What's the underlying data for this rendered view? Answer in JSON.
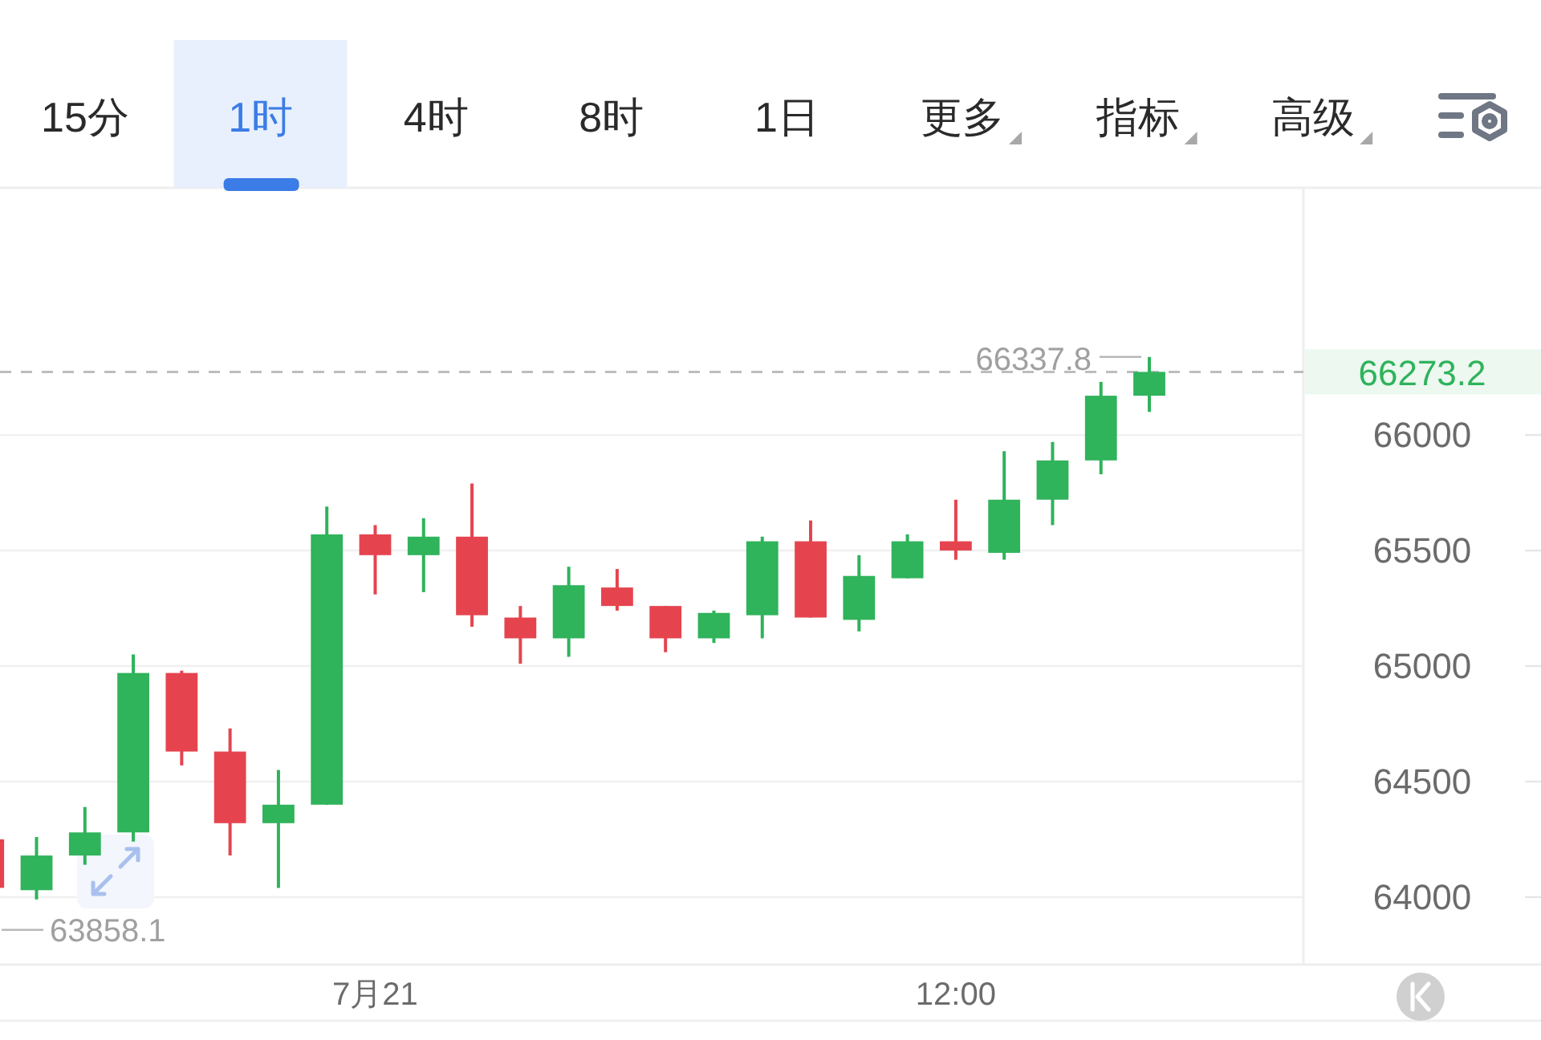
{
  "chart_data": {
    "type": "candlestick",
    "categories": [
      null,
      null,
      null,
      null,
      null,
      null,
      null,
      null,
      "7月21",
      null,
      null,
      null,
      null,
      null,
      null,
      null,
      null,
      null,
      null,
      null,
      "12:00",
      null,
      null,
      null,
      null
    ],
    "ohlc": [
      [
        64250,
        64250,
        64040,
        64040
      ],
      [
        64030,
        64260,
        63990,
        64180
      ],
      [
        64180,
        64390,
        64140,
        64280
      ],
      [
        64280,
        65050,
        64240,
        64970
      ],
      [
        64970,
        64980,
        64570,
        64630
      ],
      [
        64630,
        64730,
        64180,
        64320
      ],
      [
        64320,
        64550,
        64040,
        64400
      ],
      [
        64400,
        65690,
        64400,
        65570
      ],
      [
        65570,
        65610,
        65310,
        65480
      ],
      [
        65480,
        65640,
        65320,
        65560
      ],
      [
        65560,
        65790,
        65170,
        65220
      ],
      [
        65210,
        65260,
        65010,
        65120
      ],
      [
        65120,
        65430,
        65040,
        65350
      ],
      [
        65340,
        65420,
        65240,
        65260
      ],
      [
        65260,
        65260,
        65060,
        65120
      ],
      [
        65120,
        65240,
        65100,
        65230
      ],
      [
        65220,
        65560,
        65120,
        65540
      ],
      [
        65540,
        65630,
        65210,
        65210
      ],
      [
        65200,
        65480,
        65150,
        65390
      ],
      [
        65380,
        65570,
        65380,
        65540
      ],
      [
        65540,
        65720,
        65460,
        65500
      ],
      [
        65490,
        65930,
        65460,
        65720
      ],
      [
        65720,
        65970,
        65610,
        65890
      ],
      [
        65890,
        66230,
        65830,
        66170
      ],
      [
        66170,
        66337.8,
        66100,
        66273.2
      ]
    ],
    "colors": [
      "#e5444f",
      "#2fb35b",
      "#2fb35b",
      "#2fb35b",
      "#e5444f",
      "#e5444f",
      "#2fb35b",
      "#2fb35b",
      "#e5444f",
      "#2fb35b",
      "#e5444f",
      "#e5444f",
      "#2fb35b",
      "#e5444f",
      "#e5444f",
      "#2fb35b",
      "#2fb35b",
      "#e5444f",
      "#2fb35b",
      "#2fb35b",
      "#e5444f",
      "#2fb35b",
      "#2fb35b",
      "#2fb35b",
      "#2fb35b"
    ],
    "ylim": [
      63715,
      67070
    ],
    "yticks": [
      64000,
      64500,
      65000,
      65500,
      66000
    ],
    "grid": "y",
    "ref_lines": [
      {
        "axis": "y",
        "value": 66273.2,
        "label": "66273.2",
        "color": "#bdbdbd",
        "line_style": "dashed"
      }
    ],
    "annotations": [
      "15分",
      "1时",
      "4时",
      "8时",
      "1日",
      "更多",
      "指标",
      "高级",
      "66337.8",
      "63858.1"
    ]
  }
}
